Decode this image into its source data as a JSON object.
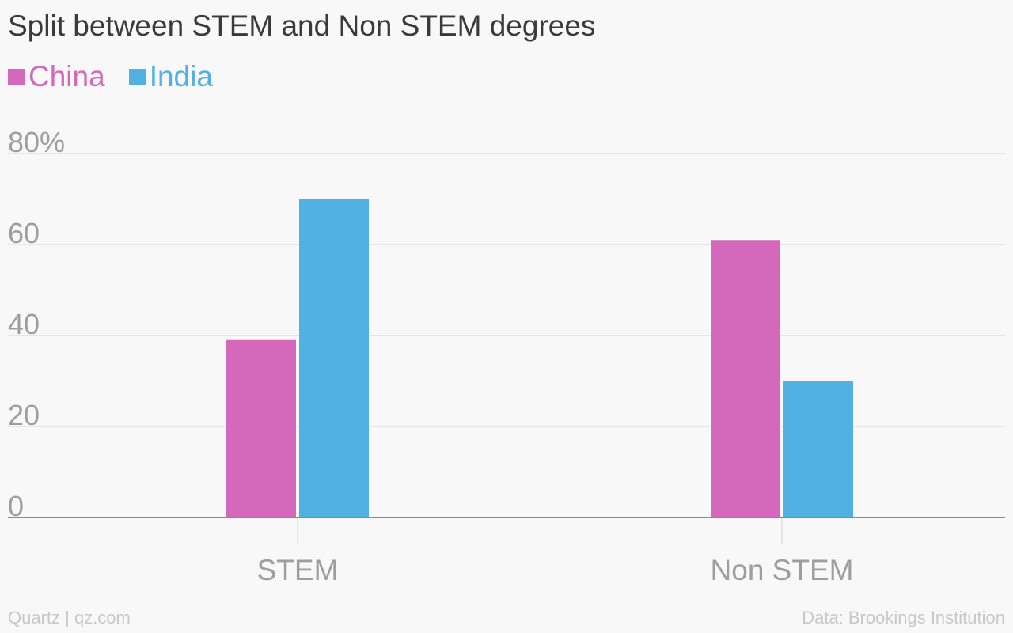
{
  "title": "Split between STEM and Non STEM degrees",
  "footer": {
    "credit": "Quartz | qz.com",
    "source": "Data: Brookings Institution"
  },
  "colors": {
    "background": "#f8f8f8",
    "title": "#3a3a3a",
    "axis_text": "#9e9e9e",
    "gridline": "#e6e6e6",
    "baseline": "#8a8a8a",
    "footer": "#c8c8c8"
  },
  "chart_data": {
    "type": "bar",
    "title": "Split between STEM and Non STEM degrees",
    "categories": [
      "STEM",
      "Non STEM"
    ],
    "series": [
      {
        "name": "China",
        "color": "#d468bb",
        "values": [
          39,
          61
        ]
      },
      {
        "name": "India",
        "color": "#52b1e3",
        "values": [
          70,
          30
        ]
      }
    ],
    "ylim": [
      0,
      80
    ],
    "yticks": [
      {
        "value": 0,
        "label": "0"
      },
      {
        "value": 20,
        "label": "20"
      },
      {
        "value": 40,
        "label": "40"
      },
      {
        "value": 60,
        "label": "60"
      },
      {
        "value": 80,
        "label": "80%"
      }
    ],
    "xlabel": "",
    "ylabel": "",
    "grid": true,
    "legend": "top-left"
  }
}
